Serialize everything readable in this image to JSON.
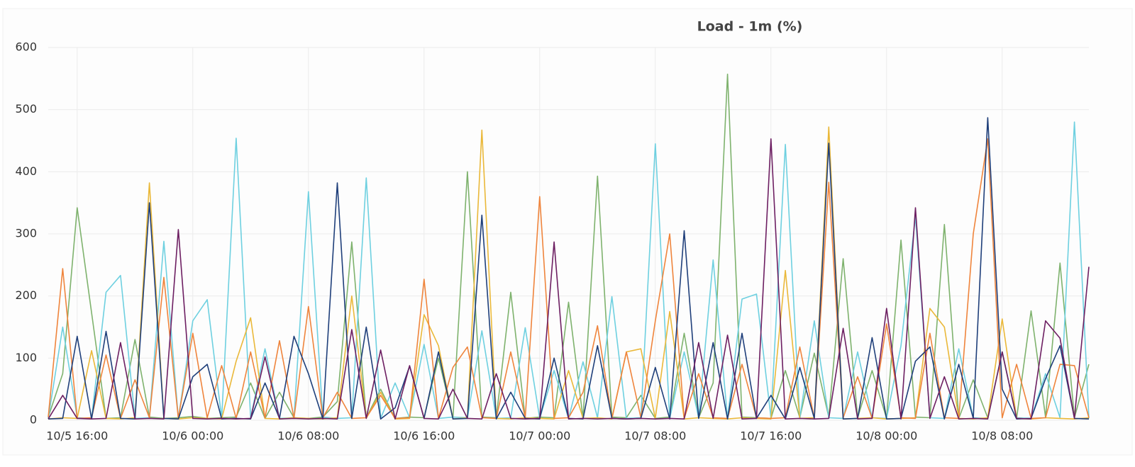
{
  "chart_data": {
    "type": "line",
    "title": "Load - 1m (%)",
    "categories": [
      null,
      null,
      "10/5 16:00",
      null,
      null,
      null,
      null,
      null,
      null,
      null,
      "10/6 00:00",
      null,
      null,
      null,
      null,
      null,
      null,
      null,
      "10/6 08:00",
      null,
      null,
      null,
      null,
      null,
      null,
      null,
      "10/6 16:00",
      null,
      null,
      null,
      null,
      null,
      null,
      null,
      "10/7 00:00",
      null,
      null,
      null,
      null,
      null,
      null,
      null,
      "10/7 08:00",
      null,
      null,
      null,
      null,
      null,
      null,
      null,
      "10/7 16:00",
      null,
      null,
      null,
      null,
      null,
      null,
      null,
      "10/8 00:00",
      null,
      null,
      null,
      null,
      null,
      null,
      null,
      "10/8 08:00",
      null,
      null,
      null,
      null,
      null,
      null
    ],
    "ylim": [
      0,
      600
    ],
    "yticks": [
      0,
      100,
      200,
      300,
      400,
      500,
      600
    ],
    "grid": true,
    "series": [
      {
        "color": "#7eb26d",
        "values": [
          5,
          75,
          342,
          173,
          3,
          4,
          130,
          5,
          3,
          4,
          6,
          3,
          4,
          5,
          60,
          3,
          45,
          4,
          3,
          5,
          30,
          287,
          4,
          50,
          3,
          5,
          4,
          100,
          3,
          400,
          5,
          4,
          206,
          3,
          5,
          4,
          190,
          3,
          393,
          5,
          4,
          40,
          3,
          5,
          140,
          4,
          60,
          557,
          5,
          4,
          3,
          80,
          4,
          108,
          5,
          260,
          4,
          80,
          3,
          290,
          5,
          4,
          315,
          3,
          65,
          4,
          110,
          3,
          176,
          5,
          253,
          4,
          90
        ]
      },
      {
        "color": "#6ed0e0",
        "values": [
          3,
          150,
          4,
          3,
          206,
          233,
          3,
          4,
          288,
          3,
          160,
          194,
          3,
          454,
          4,
          115,
          3,
          4,
          368,
          5,
          3,
          4,
          390,
          3,
          60,
          4,
          122,
          3,
          5,
          4,
          144,
          3,
          4,
          149,
          3,
          80,
          3,
          94,
          4,
          199,
          3,
          4,
          445,
          3,
          110,
          4,
          258,
          3,
          195,
          203,
          4,
          444,
          3,
          160,
          4,
          3,
          110,
          4,
          3,
          120,
          328,
          4,
          3,
          115,
          4,
          3,
          110,
          4,
          3,
          75,
          4,
          480,
          3
        ]
      },
      {
        "color": "#eab839",
        "values": [
          2,
          4,
          3,
          112,
          3,
          2,
          4,
          382,
          3,
          2,
          4,
          3,
          2,
          95,
          165,
          3,
          2,
          4,
          3,
          2,
          4,
          200,
          3,
          45,
          2,
          3,
          170,
          120,
          2,
          4,
          467,
          3,
          2,
          4,
          3,
          2,
          80,
          3,
          4,
          2,
          110,
          115,
          3,
          175,
          2,
          4,
          3,
          2,
          4,
          3,
          2,
          241,
          3,
          4,
          472,
          2,
          3,
          4,
          2,
          3,
          4,
          180,
          150,
          3,
          2,
          4,
          163,
          3,
          2,
          4,
          3,
          2,
          4
        ]
      },
      {
        "color": "#ef843c",
        "values": [
          5,
          244,
          3,
          4,
          105,
          3,
          65,
          4,
          230,
          3,
          140,
          4,
          88,
          3,
          110,
          4,
          128,
          3,
          183,
          4,
          45,
          3,
          4,
          40,
          3,
          4,
          227,
          3,
          85,
          118,
          4,
          3,
          110,
          4,
          360,
          3,
          4,
          45,
          152,
          3,
          110,
          4,
          160,
          300,
          3,
          75,
          4,
          3,
          90,
          4,
          3,
          4,
          118,
          3,
          383,
          4,
          70,
          3,
          155,
          4,
          3,
          140,
          4,
          3,
          300,
          453,
          4,
          90,
          3,
          4,
          90,
          88,
          4
        ]
      },
      {
        "color": "#1f3f7a",
        "values": [
          2,
          3,
          135,
          2,
          143,
          3,
          2,
          350,
          3,
          2,
          70,
          90,
          2,
          3,
          2,
          60,
          3,
          135,
          75,
          2,
          382,
          3,
          150,
          2,
          20,
          87,
          3,
          110,
          2,
          3,
          330,
          2,
          45,
          3,
          2,
          100,
          3,
          2,
          120,
          3,
          2,
          3,
          85,
          2,
          305,
          3,
          125,
          2,
          140,
          3,
          40,
          2,
          85,
          3,
          446,
          2,
          3,
          133,
          2,
          3,
          95,
          118,
          2,
          90,
          3,
          487,
          50,
          2,
          3,
          67,
          120,
          3,
          2
        ]
      },
      {
        "color": "#6d1f62",
        "values": [
          2,
          40,
          3,
          2,
          3,
          125,
          2,
          3,
          2,
          307,
          3,
          2,
          3,
          2,
          3,
          102,
          2,
          3,
          2,
          3,
          2,
          146,
          3,
          113,
          2,
          88,
          3,
          2,
          50,
          3,
          2,
          75,
          3,
          2,
          3,
          287,
          2,
          3,
          2,
          3,
          2,
          3,
          2,
          3,
          2,
          125,
          3,
          137,
          2,
          3,
          453,
          2,
          3,
          2,
          3,
          148,
          2,
          3,
          180,
          2,
          342,
          3,
          70,
          2,
          3,
          2,
          110,
          3,
          2,
          160,
          132,
          3,
          247
        ]
      }
    ]
  }
}
